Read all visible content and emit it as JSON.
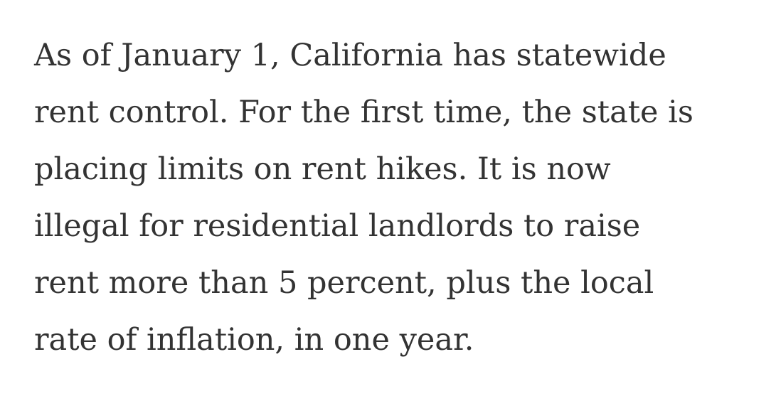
{
  "paragraph": {
    "lines": [
      "As of January 1, California has statewide",
      "rent control. For the first time, the state is",
      "placing limits on rent hikes. It is now",
      "illegal for residential landlords to raise",
      "rent more than 5 percent, plus the local",
      "rate of inflation, in one year."
    ]
  },
  "colors": {
    "text": "#333333",
    "background": "#ffffff"
  }
}
